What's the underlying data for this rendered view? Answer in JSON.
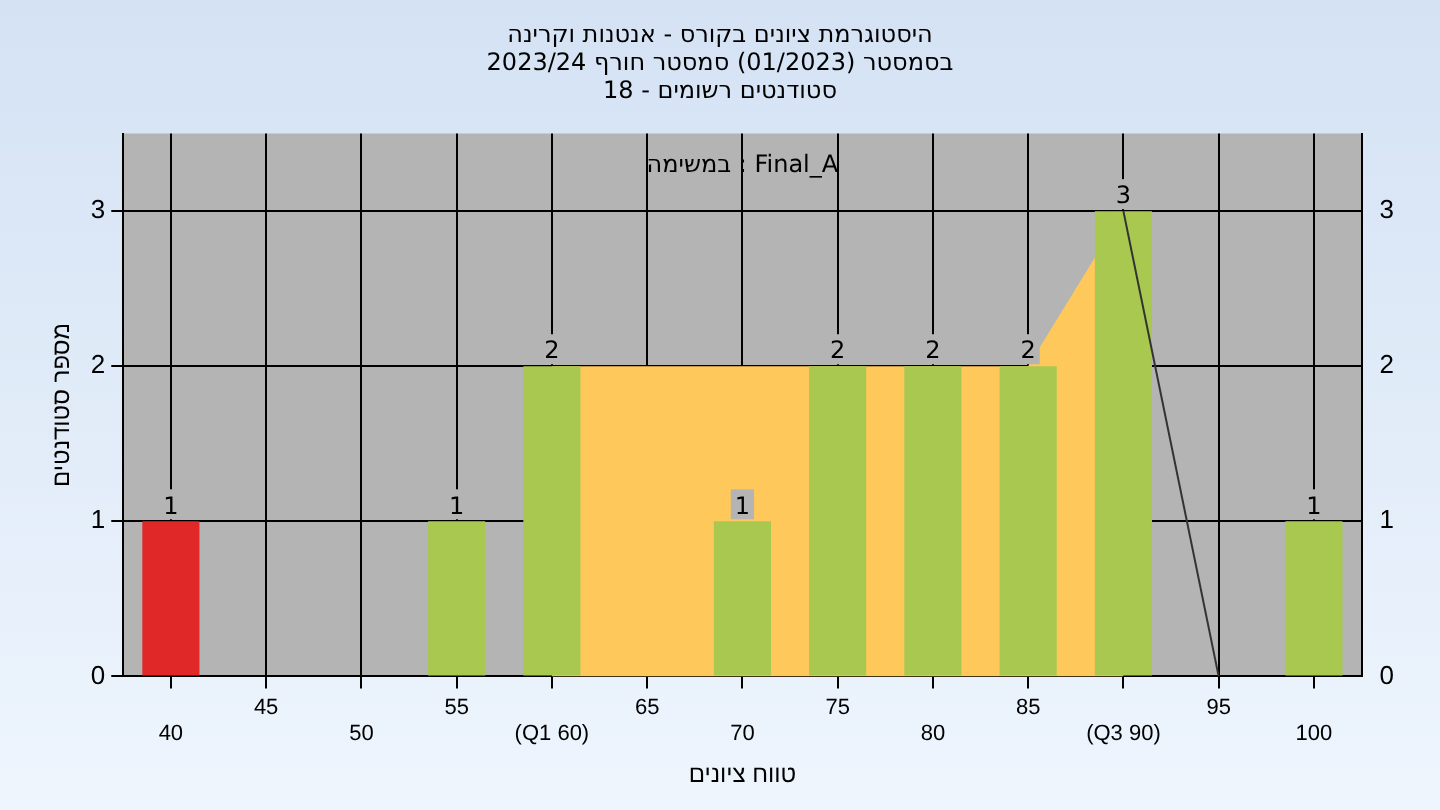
{
  "chart_data": {
    "type": "bar",
    "title": "היסטוגרמת ציונים בקורס - אנטנות וקרינה",
    "subtitle": "בסמסטר  (01/2023)  סמסטר חורף 2023/24\nסטודנטים רשומים - 18",
    "xlabel": "טווח ציונים",
    "ylabel": "מספר סטודנטים",
    "annotations": [
      "במשימה : Final_A"
    ],
    "categories": [
      "40",
      "45",
      "50",
      "55",
      "(Q1 60)",
      "65",
      "70",
      "75",
      "80",
      "85",
      "(Q3 90)",
      "95",
      "100"
    ],
    "series": [
      {
        "type": "area",
        "color": "#ffc85a",
        "values": [
          null,
          null,
          null,
          null,
          2,
          2,
          2,
          2,
          2,
          2,
          3,
          null,
          null
        ]
      },
      {
        "type": "line",
        "color": "#333333",
        "values": [
          null,
          null,
          null,
          null,
          null,
          null,
          null,
          null,
          null,
          null,
          3,
          0,
          null
        ]
      },
      {
        "colors": [
          "#e02828",
          "#a8c850",
          "#a8c850",
          "#a8c850",
          "#a8c850",
          "#a8c850",
          "#a8c850",
          "#a8c850",
          "#a8c850",
          "#a8c850",
          "#a8c850",
          "#a8c850",
          "#a8c850"
        ],
        "values": [
          1,
          0,
          0,
          1,
          2,
          0,
          1,
          2,
          2,
          2,
          3,
          0,
          1
        ],
        "value_labels": [
          "1",
          null,
          null,
          "1",
          "2",
          null,
          "1",
          "2",
          "2",
          "2",
          "3",
          null,
          "1"
        ]
      }
    ],
    "ylim": [
      0,
      3.5
    ],
    "yticks": [
      0,
      1,
      2,
      3
    ],
    "y2lim": [
      0,
      3.5
    ],
    "y2ticks": [
      0,
      1,
      2,
      3
    ],
    "grid": true,
    "legend": false,
    "marker": "none"
  }
}
